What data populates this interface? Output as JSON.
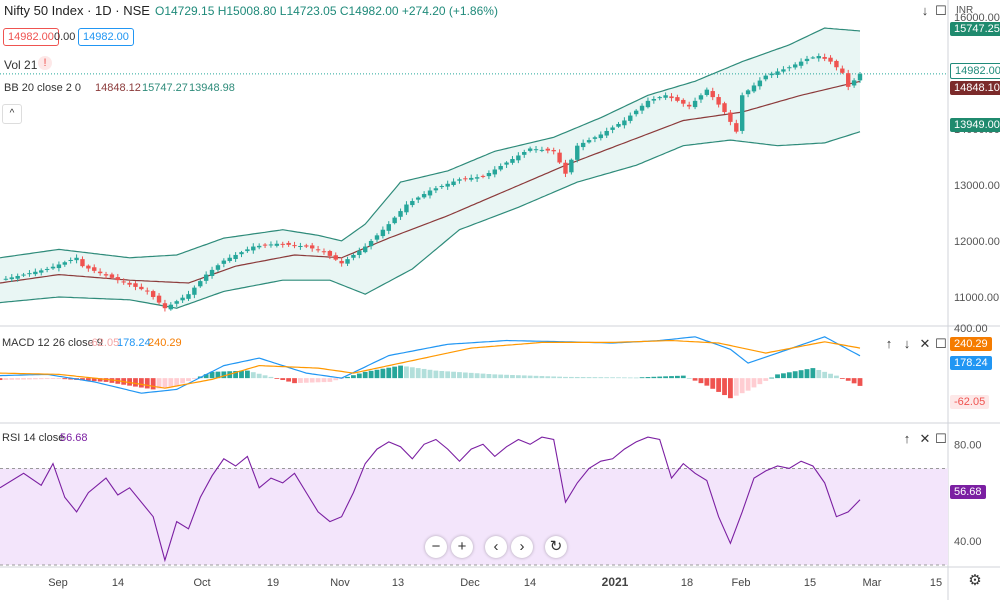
{
  "header": {
    "symbol": "Nifty 50 Index · 1D · NSE",
    "ohlc": "O14729.15 H15008.80 L14723.05 C14982.00 +274.20 (+1.86%)",
    "sell": "14982.00",
    "spread": "0.00",
    "buy": "14982.00",
    "vol": "Vol 21",
    "vol_warn": "!",
    "bb_label": "BB 20 close 2 0",
    "bb_mid": "14848.12",
    "bb_up": "15747.27",
    "bb_low": "13948.98",
    "currency": "INR"
  },
  "macd_header": {
    "label": "MACD 12 26 close 9",
    "hist": "-62.05",
    "macd": "178.24",
    "signal": "240.29"
  },
  "rsi_header": {
    "label": "RSI 14 close",
    "value": "56.68"
  },
  "price_tags": {
    "bb_up": "15747.25",
    "close": "14982.00",
    "bb_mid": "14848.10",
    "bb_low": "13949.00"
  },
  "macd_tags": {
    "signal": "240.29",
    "macd": "178.24",
    "hist": "-62.05"
  },
  "rsi_tag": "56.68",
  "colors": {
    "up": "#26a69a",
    "down": "#ef5350",
    "bb": "#2e8b7a",
    "bb_mid": "#8b3a3a",
    "macd": "#2196f3",
    "signal": "#ff9800",
    "rsi": "#7b1fa2"
  },
  "chart_data": [
    {
      "type": "candlestick",
      "title": "Nifty 50 Index · 1D · NSE",
      "x": [
        "Sep",
        "14",
        "Oct",
        "19",
        "Nov",
        "13",
        "Dec",
        "14",
        "2021",
        "18",
        "Feb",
        "15",
        "Mar",
        "15"
      ],
      "y_ticks": [
        11000,
        12000,
        13000,
        14000,
        15000,
        16000
      ],
      "ylim": [
        10500,
        16300
      ],
      "close_path": [
        {
          "x": 0,
          "v": 11300
        },
        {
          "x": 8,
          "v": 11500
        },
        {
          "x": 13,
          "v": 11700
        },
        {
          "x": 14,
          "v": 11550
        },
        {
          "x": 20,
          "v": 11300
        },
        {
          "x": 25,
          "v": 11100
        },
        {
          "x": 28,
          "v": 10800
        },
        {
          "x": 32,
          "v": 11050
        },
        {
          "x": 35,
          "v": 11400
        },
        {
          "x": 38,
          "v": 11650
        },
        {
          "x": 43,
          "v": 11900
        },
        {
          "x": 47,
          "v": 11950
        },
        {
          "x": 52,
          "v": 11900
        },
        {
          "x": 55,
          "v": 11800
        },
        {
          "x": 58,
          "v": 11600
        },
        {
          "x": 62,
          "v": 11900
        },
        {
          "x": 66,
          "v": 12300
        },
        {
          "x": 69,
          "v": 12650
        },
        {
          "x": 73,
          "v": 12900
        },
        {
          "x": 78,
          "v": 13100
        },
        {
          "x": 82,
          "v": 13150
        },
        {
          "x": 86,
          "v": 13400
        },
        {
          "x": 90,
          "v": 13650
        },
        {
          "x": 94,
          "v": 13600
        },
        {
          "x": 96,
          "v": 13200
        },
        {
          "x": 98,
          "v": 13700
        },
        {
          "x": 102,
          "v": 13900
        },
        {
          "x": 106,
          "v": 14150
        },
        {
          "x": 110,
          "v": 14500
        },
        {
          "x": 113,
          "v": 14600
        },
        {
          "x": 117,
          "v": 14400
        },
        {
          "x": 120,
          "v": 14700
        },
        {
          "x": 123,
          "v": 14300
        },
        {
          "x": 125,
          "v": 13950
        },
        {
          "x": 126,
          "v": 14600
        },
        {
          "x": 130,
          "v": 14950
        },
        {
          "x": 134,
          "v": 15100
        },
        {
          "x": 137,
          "v": 15250
        },
        {
          "x": 139,
          "v": 15300
        },
        {
          "x": 141,
          "v": 15200
        },
        {
          "x": 143,
          "v": 15000
        },
        {
          "x": 144,
          "v": 14750
        },
        {
          "x": 146,
          "v": 14982
        }
      ],
      "bb_upper": [
        {
          "x": 0,
          "v": 11700
        },
        {
          "x": 10,
          "v": 11850
        },
        {
          "x": 22,
          "v": 11700
        },
        {
          "x": 30,
          "v": 11750
        },
        {
          "x": 38,
          "v": 12050
        },
        {
          "x": 48,
          "v": 12200
        },
        {
          "x": 54,
          "v": 12100
        },
        {
          "x": 58,
          "v": 12000
        },
        {
          "x": 62,
          "v": 12300
        },
        {
          "x": 68,
          "v": 13050
        },
        {
          "x": 76,
          "v": 13250
        },
        {
          "x": 84,
          "v": 13600
        },
        {
          "x": 94,
          "v": 13850
        },
        {
          "x": 102,
          "v": 14200
        },
        {
          "x": 110,
          "v": 14600
        },
        {
          "x": 118,
          "v": 14850
        },
        {
          "x": 126,
          "v": 15200
        },
        {
          "x": 134,
          "v": 15500
        },
        {
          "x": 140,
          "v": 15800
        },
        {
          "x": 146,
          "v": 15747
        }
      ],
      "bb_middle": [
        {
          "x": 0,
          "v": 11250
        },
        {
          "x": 10,
          "v": 11400
        },
        {
          "x": 22,
          "v": 11300
        },
        {
          "x": 32,
          "v": 11250
        },
        {
          "x": 40,
          "v": 11550
        },
        {
          "x": 50,
          "v": 11750
        },
        {
          "x": 58,
          "v": 11700
        },
        {
          "x": 66,
          "v": 12050
        },
        {
          "x": 76,
          "v": 12450
        },
        {
          "x": 86,
          "v": 12900
        },
        {
          "x": 96,
          "v": 13350
        },
        {
          "x": 106,
          "v": 13750
        },
        {
          "x": 116,
          "v": 14150
        },
        {
          "x": 126,
          "v": 14300
        },
        {
          "x": 136,
          "v": 14600
        },
        {
          "x": 146,
          "v": 14848
        }
      ],
      "bb_lower": [
        {
          "x": 0,
          "v": 10900
        },
        {
          "x": 10,
          "v": 11000
        },
        {
          "x": 22,
          "v": 10950
        },
        {
          "x": 30,
          "v": 10800
        },
        {
          "x": 38,
          "v": 11100
        },
        {
          "x": 48,
          "v": 11300
        },
        {
          "x": 56,
          "v": 11300
        },
        {
          "x": 62,
          "v": 11050
        },
        {
          "x": 70,
          "v": 11500
        },
        {
          "x": 78,
          "v": 12200
        },
        {
          "x": 88,
          "v": 12600
        },
        {
          "x": 98,
          "v": 13050
        },
        {
          "x": 108,
          "v": 13350
        },
        {
          "x": 116,
          "v": 13700
        },
        {
          "x": 124,
          "v": 13800
        },
        {
          "x": 132,
          "v": 13700
        },
        {
          "x": 140,
          "v": 13750
        },
        {
          "x": 146,
          "v": 13949
        }
      ]
    },
    {
      "type": "line",
      "title": "MACD 12 26 close 9",
      "y_ticks": [
        400
      ],
      "ylim": [
        -350,
        400
      ],
      "macd": [
        {
          "x": 0,
          "v": 20
        },
        {
          "x": 8,
          "v": 30
        },
        {
          "x": 16,
          "v": -30
        },
        {
          "x": 24,
          "v": -120
        },
        {
          "x": 30,
          "v": -90
        },
        {
          "x": 38,
          "v": 100
        },
        {
          "x": 44,
          "v": 160
        },
        {
          "x": 52,
          "v": 40
        },
        {
          "x": 58,
          "v": 0
        },
        {
          "x": 66,
          "v": 180
        },
        {
          "x": 76,
          "v": 270
        },
        {
          "x": 86,
          "v": 300
        },
        {
          "x": 96,
          "v": 290
        },
        {
          "x": 104,
          "v": 280
        },
        {
          "x": 112,
          "v": 300
        },
        {
          "x": 118,
          "v": 330
        },
        {
          "x": 124,
          "v": 230
        },
        {
          "x": 127,
          "v": 120
        },
        {
          "x": 132,
          "v": 200
        },
        {
          "x": 140,
          "v": 330
        },
        {
          "x": 146,
          "v": 178
        }
      ],
      "signal": [
        {
          "x": 0,
          "v": 40
        },
        {
          "x": 10,
          "v": 30
        },
        {
          "x": 20,
          "v": -20
        },
        {
          "x": 28,
          "v": -80
        },
        {
          "x": 36,
          "v": -10
        },
        {
          "x": 44,
          "v": 100
        },
        {
          "x": 54,
          "v": 80
        },
        {
          "x": 60,
          "v": 40
        },
        {
          "x": 70,
          "v": 140
        },
        {
          "x": 80,
          "v": 240
        },
        {
          "x": 92,
          "v": 285
        },
        {
          "x": 104,
          "v": 285
        },
        {
          "x": 114,
          "v": 300
        },
        {
          "x": 122,
          "v": 280
        },
        {
          "x": 130,
          "v": 200
        },
        {
          "x": 140,
          "v": 290
        },
        {
          "x": 146,
          "v": 240
        }
      ],
      "hist": [
        {
          "x": 0,
          "v": -15
        },
        {
          "x": 10,
          "v": -5
        },
        {
          "x": 18,
          "v": -30
        },
        {
          "x": 26,
          "v": -90
        },
        {
          "x": 30,
          "v": -60
        },
        {
          "x": 36,
          "v": 50
        },
        {
          "x": 42,
          "v": 60
        },
        {
          "x": 50,
          "v": -40
        },
        {
          "x": 56,
          "v": -30
        },
        {
          "x": 62,
          "v": 50
        },
        {
          "x": 68,
          "v": 100
        },
        {
          "x": 74,
          "v": 60
        },
        {
          "x": 84,
          "v": 30
        },
        {
          "x": 96,
          "v": 10
        },
        {
          "x": 108,
          "v": 5
        },
        {
          "x": 116,
          "v": 20
        },
        {
          "x": 120,
          "v": -60
        },
        {
          "x": 124,
          "v": -160
        },
        {
          "x": 127,
          "v": -100
        },
        {
          "x": 132,
          "v": 30
        },
        {
          "x": 138,
          "v": 80
        },
        {
          "x": 142,
          "v": 20
        },
        {
          "x": 146,
          "v": -62
        }
      ]
    },
    {
      "type": "line",
      "title": "RSI 14 close",
      "y_ticks": [
        40,
        60,
        80
      ],
      "ylim": [
        30,
        88
      ],
      "bands": [
        30,
        70
      ],
      "rsi": [
        {
          "x": 0,
          "v": 62
        },
        {
          "x": 4,
          "v": 68
        },
        {
          "x": 7,
          "v": 63
        },
        {
          "x": 9,
          "v": 72
        },
        {
          "x": 11,
          "v": 58
        },
        {
          "x": 13,
          "v": 52
        },
        {
          "x": 15,
          "v": 60
        },
        {
          "x": 18,
          "v": 66
        },
        {
          "x": 20,
          "v": 59
        },
        {
          "x": 22,
          "v": 62
        },
        {
          "x": 26,
          "v": 50
        },
        {
          "x": 28,
          "v": 32
        },
        {
          "x": 30,
          "v": 48
        },
        {
          "x": 32,
          "v": 45
        },
        {
          "x": 34,
          "v": 58
        },
        {
          "x": 36,
          "v": 67
        },
        {
          "x": 38,
          "v": 74
        },
        {
          "x": 40,
          "v": 71
        },
        {
          "x": 42,
          "v": 75
        },
        {
          "x": 44,
          "v": 62
        },
        {
          "x": 46,
          "v": 66
        },
        {
          "x": 48,
          "v": 64
        },
        {
          "x": 50,
          "v": 68
        },
        {
          "x": 52,
          "v": 60
        },
        {
          "x": 54,
          "v": 52
        },
        {
          "x": 56,
          "v": 48
        },
        {
          "x": 58,
          "v": 50
        },
        {
          "x": 60,
          "v": 60
        },
        {
          "x": 62,
          "v": 72
        },
        {
          "x": 64,
          "v": 78
        },
        {
          "x": 66,
          "v": 81
        },
        {
          "x": 68,
          "v": 79
        },
        {
          "x": 70,
          "v": 74
        },
        {
          "x": 72,
          "v": 80
        },
        {
          "x": 74,
          "v": 82
        },
        {
          "x": 76,
          "v": 78
        },
        {
          "x": 78,
          "v": 73
        },
        {
          "x": 80,
          "v": 78
        },
        {
          "x": 82,
          "v": 80
        },
        {
          "x": 84,
          "v": 75
        },
        {
          "x": 86,
          "v": 79
        },
        {
          "x": 88,
          "v": 82
        },
        {
          "x": 90,
          "v": 80
        },
        {
          "x": 92,
          "v": 83
        },
        {
          "x": 94,
          "v": 82
        },
        {
          "x": 96,
          "v": 56
        },
        {
          "x": 98,
          "v": 64
        },
        {
          "x": 100,
          "v": 70
        },
        {
          "x": 102,
          "v": 73
        },
        {
          "x": 104,
          "v": 74
        },
        {
          "x": 106,
          "v": 78
        },
        {
          "x": 108,
          "v": 81
        },
        {
          "x": 110,
          "v": 83
        },
        {
          "x": 112,
          "v": 82
        },
        {
          "x": 114,
          "v": 66
        },
        {
          "x": 116,
          "v": 72
        },
        {
          "x": 118,
          "v": 68
        },
        {
          "x": 120,
          "v": 65
        },
        {
          "x": 122,
          "v": 50
        },
        {
          "x": 124,
          "v": 39
        },
        {
          "x": 126,
          "v": 52
        },
        {
          "x": 128,
          "v": 66
        },
        {
          "x": 130,
          "v": 69
        },
        {
          "x": 132,
          "v": 71
        },
        {
          "x": 134,
          "v": 70
        },
        {
          "x": 136,
          "v": 73
        },
        {
          "x": 138,
          "v": 71
        },
        {
          "x": 140,
          "v": 64
        },
        {
          "x": 142,
          "v": 50
        },
        {
          "x": 144,
          "v": 52
        },
        {
          "x": 146,
          "v": 57
        }
      ]
    }
  ]
}
